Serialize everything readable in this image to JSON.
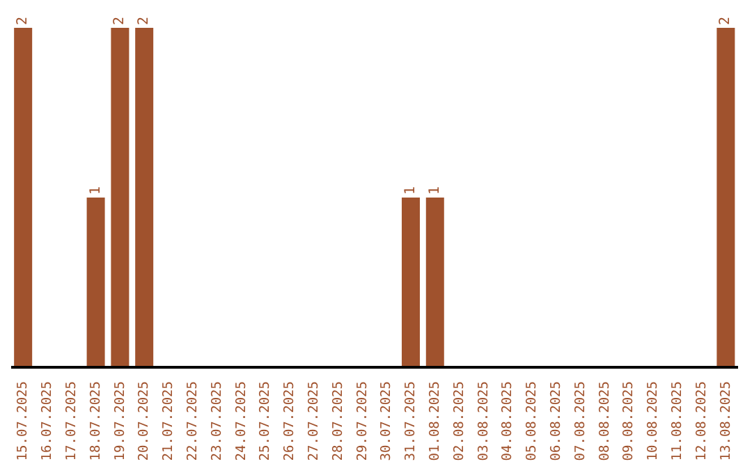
{
  "chart_data": {
    "type": "bar",
    "categories": [
      "15.07.2025",
      "16.07.2025",
      "17.07.2025",
      "18.07.2025",
      "19.07.2025",
      "20.07.2025",
      "21.07.2025",
      "22.07.2025",
      "23.07.2025",
      "24.07.2025",
      "25.07.2025",
      "26.07.2025",
      "27.07.2025",
      "28.07.2025",
      "29.07.2025",
      "30.07.2025",
      "31.07.2025",
      "01.08.2025",
      "02.08.2025",
      "03.08.2025",
      "04.08.2025",
      "05.08.2025",
      "06.08.2025",
      "07.08.2025",
      "08.08.2025",
      "09.08.2025",
      "10.08.2025",
      "11.08.2025",
      "12.08.2025",
      "13.08.2025"
    ],
    "values": [
      2,
      0,
      0,
      1,
      2,
      2,
      0,
      0,
      0,
      0,
      0,
      0,
      0,
      0,
      0,
      0,
      1,
      1,
      0,
      0,
      0,
      0,
      0,
      0,
      0,
      0,
      0,
      0,
      0,
      2
    ],
    "value_labels": [
      "2",
      null,
      null,
      "1",
      "2",
      "2",
      null,
      null,
      null,
      null,
      null,
      null,
      null,
      null,
      null,
      null,
      "1",
      "1",
      null,
      null,
      null,
      null,
      null,
      null,
      null,
      null,
      null,
      null,
      null,
      "2"
    ],
    "color": "#a0522d",
    "grid": false,
    "legend": false
  }
}
